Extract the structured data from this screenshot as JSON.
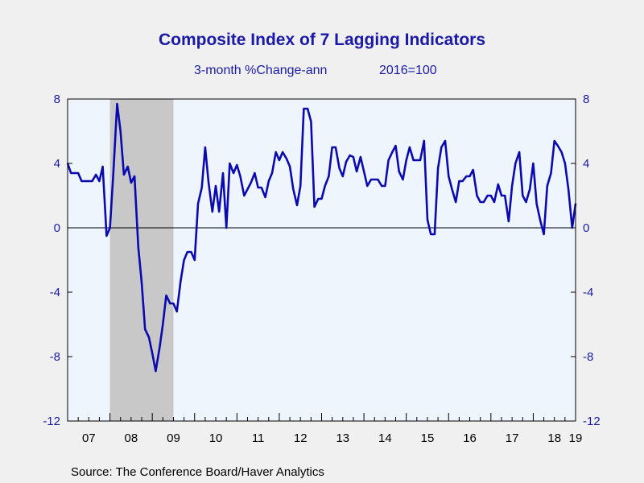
{
  "title": "Composite Index of 7 Lagging Indicators",
  "subtitle_left": "3-month %Change-ann",
  "subtitle_right": "2016=100",
  "source": "Source:  The Conference Board/Haver Analytics",
  "colors": {
    "background": "#f0f0f0",
    "plot_background": "#eef5fd",
    "recession_shading": "#c8c8c8",
    "series_line": "#0a0ab0",
    "text": "#1a1aa6"
  },
  "chart_data": {
    "type": "line",
    "title": "Composite Index of 7 Lagging Indicators",
    "subtitle": "3-month %Change-ann    2016=100",
    "xlabel": "",
    "ylabel": "",
    "xlim": [
      2007.0,
      2019.0
    ],
    "ylim": [
      -12,
      8
    ],
    "yticks": [
      8,
      4,
      0,
      -4,
      -8,
      -12
    ],
    "xtick_labels": [
      "07",
      "08",
      "09",
      "10",
      "11",
      "12",
      "13",
      "14",
      "15",
      "16",
      "17",
      "18",
      "19"
    ],
    "grid": false,
    "zero_line": true,
    "recession_shading": [
      [
        2008.0,
        2009.5
      ]
    ],
    "series": [
      {
        "values": [
          [
            2007.0,
            4.0
          ],
          [
            2007.08,
            3.4
          ],
          [
            2007.17,
            3.4
          ],
          [
            2007.25,
            3.4
          ],
          [
            2007.33,
            2.9
          ],
          [
            2007.42,
            2.9
          ],
          [
            2007.5,
            2.9
          ],
          [
            2007.58,
            2.9
          ],
          [
            2007.67,
            3.3
          ],
          [
            2007.75,
            2.9
          ],
          [
            2007.83,
            3.8
          ],
          [
            2007.92,
            -0.5
          ],
          [
            2008.0,
            0.0
          ],
          [
            2008.08,
            3.4
          ],
          [
            2008.17,
            7.7
          ],
          [
            2008.25,
            6.0
          ],
          [
            2008.33,
            3.3
          ],
          [
            2008.42,
            3.8
          ],
          [
            2008.5,
            2.8
          ],
          [
            2008.58,
            3.2
          ],
          [
            2008.67,
            -1.2
          ],
          [
            2008.75,
            -3.4
          ],
          [
            2008.83,
            -6.3
          ],
          [
            2008.92,
            -6.8
          ],
          [
            2009.0,
            -7.8
          ],
          [
            2009.08,
            -8.9
          ],
          [
            2009.17,
            -7.5
          ],
          [
            2009.25,
            -6.0
          ],
          [
            2009.33,
            -4.2
          ],
          [
            2009.42,
            -4.7
          ],
          [
            2009.5,
            -4.7
          ],
          [
            2009.58,
            -5.2
          ],
          [
            2009.67,
            -3.3
          ],
          [
            2009.75,
            -2.0
          ],
          [
            2009.83,
            -1.5
          ],
          [
            2009.92,
            -1.5
          ],
          [
            2010.0,
            -2.0
          ],
          [
            2010.08,
            1.5
          ],
          [
            2010.17,
            2.5
          ],
          [
            2010.25,
            5.0
          ],
          [
            2010.33,
            2.8
          ],
          [
            2010.42,
            1.0
          ],
          [
            2010.5,
            2.6
          ],
          [
            2010.58,
            1.0
          ],
          [
            2010.67,
            3.4
          ],
          [
            2010.75,
            0.0
          ],
          [
            2010.83,
            4.0
          ],
          [
            2010.92,
            3.4
          ],
          [
            2011.0,
            3.9
          ],
          [
            2011.08,
            3.2
          ],
          [
            2011.17,
            2.0
          ],
          [
            2011.25,
            2.4
          ],
          [
            2011.33,
            2.8
          ],
          [
            2011.42,
            3.4
          ],
          [
            2011.5,
            2.5
          ],
          [
            2011.58,
            2.5
          ],
          [
            2011.67,
            1.9
          ],
          [
            2011.75,
            2.9
          ],
          [
            2011.83,
            3.4
          ],
          [
            2011.92,
            4.7
          ],
          [
            2012.0,
            4.2
          ],
          [
            2012.08,
            4.7
          ],
          [
            2012.17,
            4.3
          ],
          [
            2012.25,
            3.8
          ],
          [
            2012.33,
            2.4
          ],
          [
            2012.42,
            1.4
          ],
          [
            2012.5,
            2.6
          ],
          [
            2012.58,
            7.4
          ],
          [
            2012.67,
            7.4
          ],
          [
            2012.75,
            6.6
          ],
          [
            2012.83,
            1.3
          ],
          [
            2012.92,
            1.8
          ],
          [
            2013.0,
            1.8
          ],
          [
            2013.08,
            2.6
          ],
          [
            2013.17,
            3.2
          ],
          [
            2013.25,
            5.0
          ],
          [
            2013.33,
            5.0
          ],
          [
            2013.42,
            3.7
          ],
          [
            2013.5,
            3.2
          ],
          [
            2013.58,
            4.1
          ],
          [
            2013.67,
            4.5
          ],
          [
            2013.75,
            4.4
          ],
          [
            2013.83,
            3.5
          ],
          [
            2013.92,
            4.4
          ],
          [
            2014.0,
            3.5
          ],
          [
            2014.08,
            2.6
          ],
          [
            2014.17,
            3.0
          ],
          [
            2014.25,
            3.0
          ],
          [
            2014.33,
            3.0
          ],
          [
            2014.42,
            2.6
          ],
          [
            2014.5,
            2.6
          ],
          [
            2014.58,
            4.2
          ],
          [
            2014.67,
            4.7
          ],
          [
            2014.75,
            5.1
          ],
          [
            2014.83,
            3.5
          ],
          [
            2014.92,
            3.0
          ],
          [
            2015.0,
            4.2
          ],
          [
            2015.08,
            5.0
          ],
          [
            2015.17,
            4.2
          ],
          [
            2015.25,
            4.2
          ],
          [
            2015.33,
            4.2
          ],
          [
            2015.42,
            5.4
          ],
          [
            2015.5,
            0.5
          ],
          [
            2015.58,
            -0.4
          ],
          [
            2015.67,
            -0.4
          ],
          [
            2015.75,
            3.7
          ],
          [
            2015.83,
            5.0
          ],
          [
            2015.92,
            5.4
          ],
          [
            2016.0,
            3.2
          ],
          [
            2016.08,
            2.4
          ],
          [
            2016.17,
            1.6
          ],
          [
            2016.25,
            2.9
          ],
          [
            2016.33,
            2.9
          ],
          [
            2016.42,
            3.2
          ],
          [
            2016.5,
            3.2
          ],
          [
            2016.58,
            3.6
          ],
          [
            2016.67,
            2.0
          ],
          [
            2016.75,
            1.6
          ],
          [
            2016.83,
            1.6
          ],
          [
            2016.92,
            2.0
          ],
          [
            2017.0,
            2.0
          ],
          [
            2017.08,
            1.6
          ],
          [
            2017.17,
            2.7
          ],
          [
            2017.25,
            2.0
          ],
          [
            2017.33,
            2.0
          ],
          [
            2017.42,
            0.4
          ],
          [
            2017.5,
            2.6
          ],
          [
            2017.58,
            4.0
          ],
          [
            2017.67,
            4.7
          ],
          [
            2017.75,
            2.0
          ],
          [
            2017.83,
            1.6
          ],
          [
            2017.92,
            2.4
          ],
          [
            2018.0,
            4.0
          ],
          [
            2018.08,
            1.5
          ],
          [
            2018.17,
            0.4
          ],
          [
            2018.25,
            -0.4
          ],
          [
            2018.33,
            2.6
          ],
          [
            2018.42,
            3.4
          ],
          [
            2018.5,
            5.4
          ],
          [
            2018.58,
            5.1
          ],
          [
            2018.67,
            4.7
          ],
          [
            2018.75,
            4.0
          ],
          [
            2018.83,
            2.4
          ],
          [
            2018.92,
            0.0
          ],
          [
            2019.0,
            1.5
          ]
        ]
      }
    ]
  }
}
